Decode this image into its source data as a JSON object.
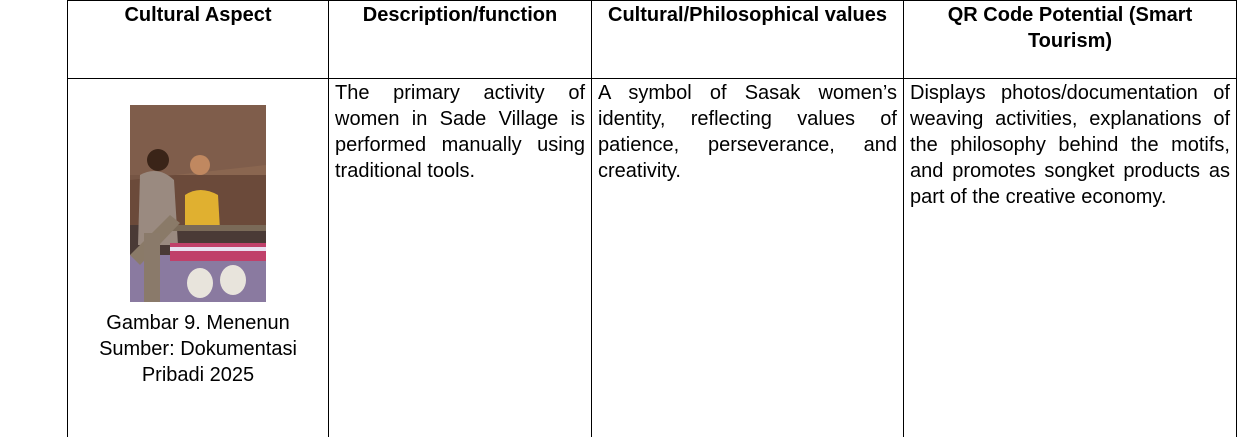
{
  "table": {
    "header": [
      "Cultural Aspect",
      "Description/function",
      "Cultural/Philosophical values",
      "QR Code Potential (Smart Tourism)"
    ],
    "rows": [
      [
        {
          "caption": [
            "Gambar 9. Menenun",
            "Sumber: Dokumentasi Pribadi 2025"
          ]
        },
        "The primary activity of women in Sade Village is performed manually using traditional tools.",
        "A symbol of Sasak women’s identity, reflecting values of patience, perseverance, and creativity.",
        "Displays photos/documentation of weaving activities, explanations of the philosophy behind the motifs, and promotes songket products as part of the creative economy."
      ]
    ]
  }
}
